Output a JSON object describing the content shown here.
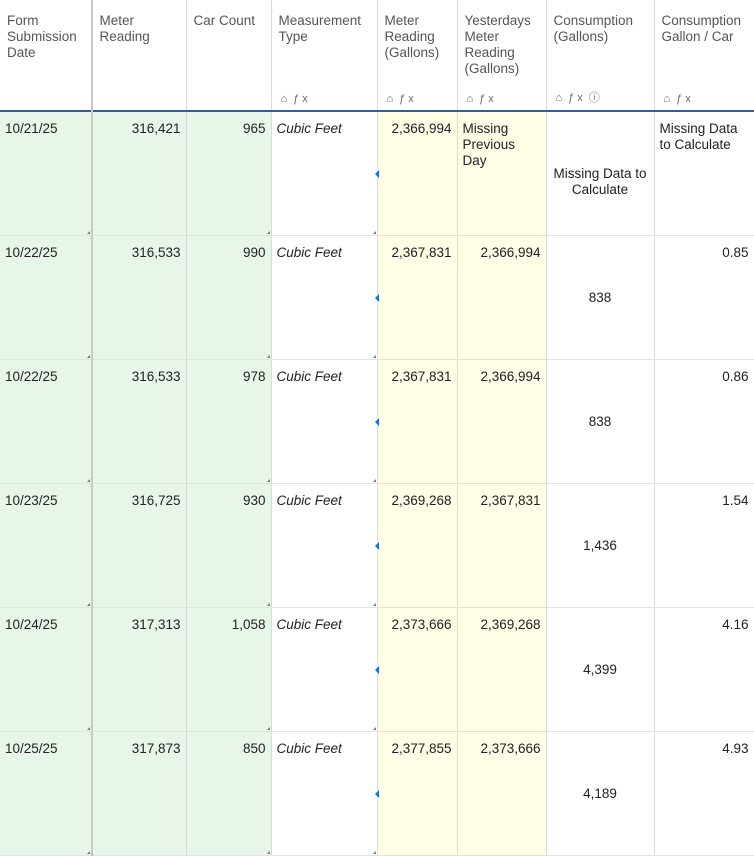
{
  "columns": [
    {
      "label": "Form Submission Date",
      "icons": []
    },
    {
      "label": "Meter Reading",
      "icons": []
    },
    {
      "label": "Car Count",
      "icons": []
    },
    {
      "label": "Measurement Type",
      "icons": [
        "lock-icon",
        "formula-icon"
      ]
    },
    {
      "label": "Meter Reading (Gallons)",
      "icons": [
        "lock-icon",
        "formula-icon"
      ]
    },
    {
      "label": "Yesterdays Meter Reading (Gallons)",
      "icons": [
        "lock-icon",
        "formula-icon"
      ]
    },
    {
      "label": "Consumption (Gallons)",
      "icons": [
        "lock-icon",
        "formula-icon",
        "info-icon"
      ]
    },
    {
      "label": "Consumption Gallon / Car",
      "icons": [
        "lock-icon",
        "formula-icon"
      ]
    }
  ],
  "icon_glyphs": {
    "lock": "⌂",
    "formula": "ƒx",
    "info": "ⓘ"
  },
  "rows": [
    {
      "date": "10/21/25",
      "meter": "316,421",
      "cars": "965",
      "type": "Cubic Feet",
      "gallons": "2,366,994",
      "yesterday": "Missing Previous Day",
      "consumption": "Missing Data to Calculate",
      "per_car": "Missing Data to Calculate"
    },
    {
      "date": "10/22/25",
      "meter": "316,533",
      "cars": "990",
      "type": "Cubic Feet",
      "gallons": "2,367,831",
      "yesterday": "2,366,994",
      "consumption": "838",
      "per_car": "0.85"
    },
    {
      "date": "10/22/25",
      "meter": "316,533",
      "cars": "978",
      "type": "Cubic Feet",
      "gallons": "2,367,831",
      "yesterday": "2,366,994",
      "consumption": "838",
      "per_car": "0.86"
    },
    {
      "date": "10/23/25",
      "meter": "316,725",
      "cars": "930",
      "type": "Cubic Feet",
      "gallons": "2,369,268",
      "yesterday": "2,367,831",
      "consumption": "1,436",
      "per_car": "1.54"
    },
    {
      "date": "10/24/25",
      "meter": "317,313",
      "cars": "1,058",
      "type": "Cubic Feet",
      "gallons": "2,373,666",
      "yesterday": "2,369,268",
      "consumption": "4,399",
      "per_car": "4.16"
    },
    {
      "date": "10/25/25",
      "meter": "317,873",
      "cars": "850",
      "type": "Cubic Feet",
      "gallons": "2,377,855",
      "yesterday": "2,373,666",
      "consumption": "4,189",
      "per_car": "4.93"
    }
  ],
  "colors": {
    "input_columns": "#e8f5e9",
    "formula_highlight": "#fffde6",
    "header_rule": "#3f5a8c"
  }
}
